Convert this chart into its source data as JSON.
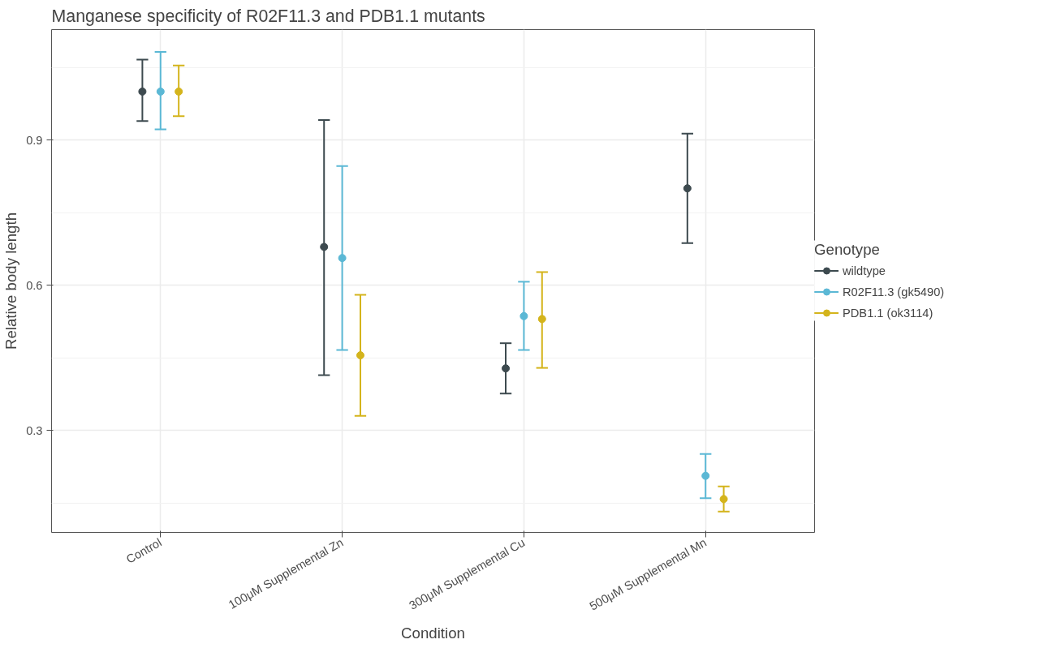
{
  "chart_data": {
    "type": "scatter",
    "title": "Manganese specificity of R02F11.3 and PDB1.1 mutants",
    "xlabel": "Condition",
    "ylabel": "Relative body length",
    "legend_title": "Genotype",
    "categories": [
      "Control",
      "100μM Supplemental Zn",
      "300μM Supplemental Cu",
      "500μM Supplemental Mn"
    ],
    "series": [
      {
        "name": "wildtype",
        "color": "#3d4a4f",
        "values": [
          1.0,
          0.679,
          0.428,
          0.8
        ],
        "errors": [
          [
            0.939,
            1.066
          ],
          [
            0.414,
            0.941
          ],
          [
            0.376,
            0.48
          ],
          [
            0.687,
            0.913
          ]
        ]
      },
      {
        "name": "R02F11.3 (gk5490)",
        "color": "#5bb8d5",
        "values": [
          1.0,
          0.656,
          0.536,
          0.206
        ],
        "errors": [
          [
            0.922,
            1.082
          ],
          [
            0.466,
            0.846
          ],
          [
            0.466,
            0.607
          ],
          [
            0.16,
            0.251
          ]
        ]
      },
      {
        "name": "PDB1.1 (ok3114)",
        "color": "#d4b41c",
        "values": [
          1.0,
          0.455,
          0.53,
          0.158
        ],
        "errors": [
          [
            0.949,
            1.054
          ],
          [
            0.33,
            0.58
          ],
          [
            0.429,
            0.627
          ],
          [
            0.132,
            0.184
          ]
        ]
      }
    ],
    "ylim": [
      0.089,
      1.128
    ],
    "yticks": [
      0.3,
      0.6,
      0.9
    ],
    "grid": true,
    "legend": "right",
    "marker": "circle"
  }
}
